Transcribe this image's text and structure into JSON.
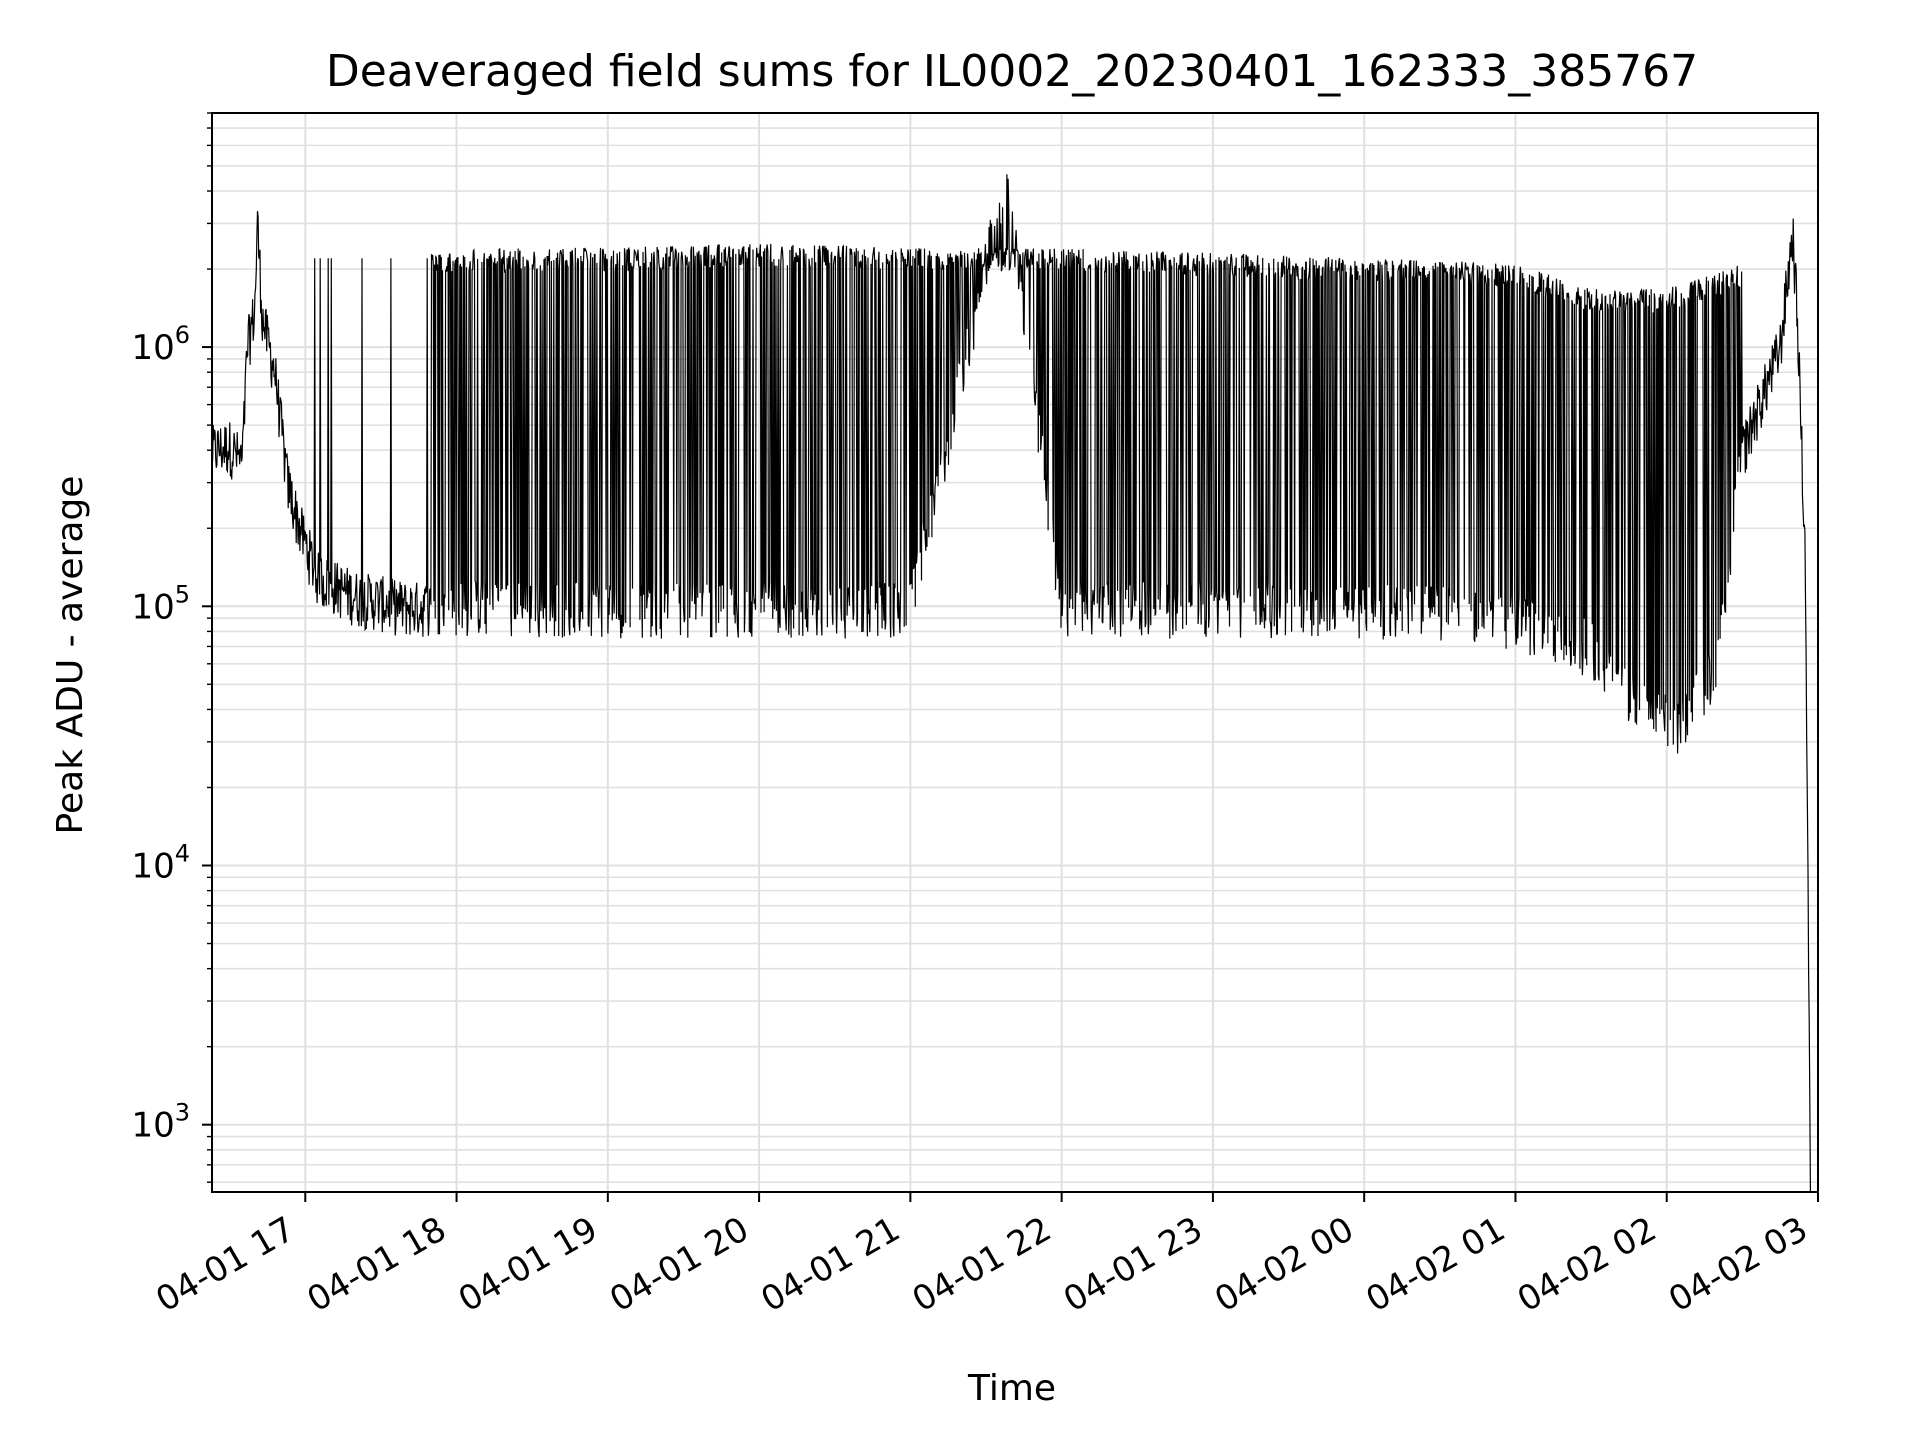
{
  "chart_data": {
    "type": "line",
    "title": "Deaveraged field sums for IL0002_20230401_162333_385767",
    "xlabel": "Time",
    "ylabel": "Peak ADU - average",
    "yscale": "log",
    "ylim": [
      550,
      8000000
    ],
    "xlim": [
      "2023-04-01 16:23",
      "2023-04-02 03:00"
    ],
    "x_ticks": [
      {
        "value": "2023-04-01 17:00",
        "label": "04-01 17"
      },
      {
        "value": "2023-04-01 18:00",
        "label": "04-01 18"
      },
      {
        "value": "2023-04-01 19:00",
        "label": "04-01 19"
      },
      {
        "value": "2023-04-01 20:00",
        "label": "04-01 20"
      },
      {
        "value": "2023-04-01 21:00",
        "label": "04-01 21"
      },
      {
        "value": "2023-04-01 22:00",
        "label": "04-01 22"
      },
      {
        "value": "2023-04-01 23:00",
        "label": "04-01 23"
      },
      {
        "value": "2023-04-02 00:00",
        "label": "04-02 00"
      },
      {
        "value": "2023-04-02 01:00",
        "label": "04-02 01"
      },
      {
        "value": "2023-04-02 02:00",
        "label": "04-02 02"
      },
      {
        "value": "2023-04-02 03:00",
        "label": "04-02 03"
      }
    ],
    "y_ticks": [
      {
        "value": 1000,
        "base": "10",
        "exp": "3"
      },
      {
        "value": 10000,
        "base": "10",
        "exp": "4"
      },
      {
        "value": 100000,
        "base": "10",
        "exp": "5"
      },
      {
        "value": 1000000,
        "base": "10",
        "exp": "6"
      }
    ],
    "grid": true,
    "line_color": "#000000",
    "grid_color": "#e0e0e0",
    "series": [
      {
        "points": [
          [
            "2023-04-01 16:23",
            400000
          ],
          [
            "2023-04-01 16:30",
            420000
          ],
          [
            "2023-04-01 16:35",
            360000
          ],
          [
            "2023-04-01 16:37",
            1000000
          ],
          [
            "2023-04-01 16:40",
            1400000
          ],
          [
            "2023-04-01 16:41",
            3100000
          ],
          [
            "2023-04-01 16:43",
            1300000
          ],
          [
            "2023-04-01 16:48",
            800000
          ],
          [
            "2023-04-01 16:53",
            300000
          ],
          [
            "2023-04-01 16:58",
            200000
          ],
          [
            "2023-04-01 17:05",
            130000
          ],
          [
            "2023-04-01 17:20",
            110000
          ],
          [
            "2023-04-01 17:40",
            100000
          ],
          [
            "2023-04-01 18:00",
            100000
          ],
          [
            "2023-04-01 19:00",
            100000
          ],
          [
            "2023-04-01 20:00",
            100000
          ],
          [
            "2023-04-01 21:00",
            100000
          ],
          [
            "2023-04-01 21:38",
            4800000
          ],
          [
            "2023-04-01 22:00",
            100000
          ],
          [
            "2023-04-01 23:00",
            100000
          ],
          [
            "2023-04-02 00:00",
            100000
          ],
          [
            "2023-04-02 00:40",
            95000
          ],
          [
            "2023-04-02 01:00",
            90000
          ],
          [
            "2023-04-02 01:30",
            70000
          ],
          [
            "2023-04-02 01:50",
            40000
          ],
          [
            "2023-04-02 02:05",
            35000
          ],
          [
            "2023-04-02 02:20",
            60000
          ],
          [
            "2023-04-02 02:30",
            400000
          ],
          [
            "2023-04-02 02:45",
            1000000
          ],
          [
            "2023-04-02 02:50",
            2800000
          ],
          [
            "2023-04-02 02:52",
            1200000
          ],
          [
            "2023-04-02 02:55",
            150000
          ],
          [
            "2023-04-02 02:57",
            550
          ]
        ],
        "upper_envelope": [
          [
            "2023-04-01 17:50",
            2300000
          ],
          [
            "2023-04-01 19:00",
            2300000
          ],
          [
            "2023-04-01 20:00",
            2400000
          ],
          [
            "2023-04-01 21:00",
            2300000
          ],
          [
            "2023-04-01 22:00",
            2300000
          ],
          [
            "2023-04-01 23:00",
            2200000
          ],
          [
            "2023-04-02 00:00",
            2100000
          ],
          [
            "2023-04-02 01:00",
            2000000
          ],
          [
            "2023-04-02 01:30",
            1600000
          ],
          [
            "2023-04-02 02:00",
            1600000
          ],
          [
            "2023-04-02 02:30",
            2000000
          ]
        ]
      }
    ]
  }
}
